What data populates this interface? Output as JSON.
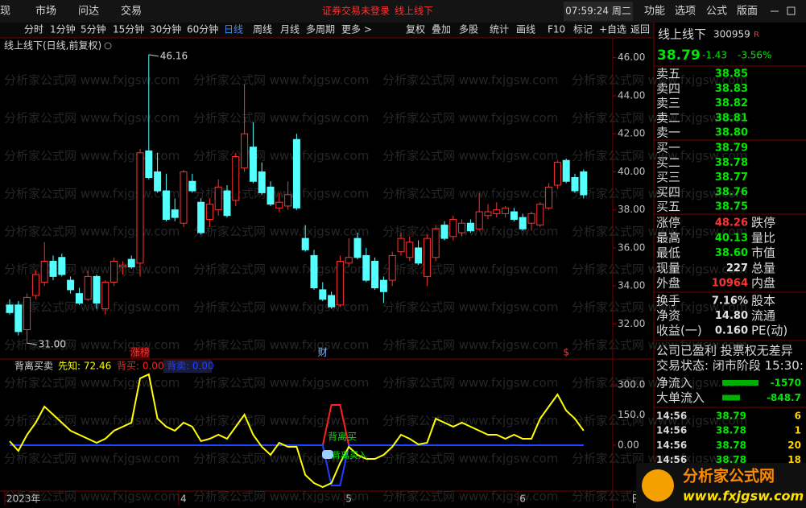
{
  "menu": {
    "left": [
      "现",
      "市场",
      "问达",
      "交易"
    ],
    "notice": "证券交易未登录",
    "stock": "线上线下",
    "clock": "07:59:24 周二",
    "right": [
      "功能",
      "选项",
      "公式",
      "版面"
    ]
  },
  "toolbar": {
    "periods": [
      "分时",
      "1分钟",
      "5分钟",
      "15分钟",
      "30分钟",
      "60分钟",
      "日线",
      "周线",
      "月线",
      "多周期",
      "更多 >"
    ],
    "tools": [
      "复权",
      "叠加",
      "多股",
      "统计",
      "画线",
      "F10",
      "标记",
      "+自选",
      "返回"
    ]
  },
  "kline": {
    "title": "线上线下(日线,前复权)",
    "ylim": [
      30.2,
      47.0
    ],
    "yticks": [
      {
        "value": 46,
        "label": "46.00"
      },
      {
        "value": 44,
        "label": "44.00"
      },
      {
        "value": 42,
        "label": "42.00"
      },
      {
        "value": 40,
        "label": "40.00"
      },
      {
        "value": 38,
        "label": "38.00"
      },
      {
        "value": 36,
        "label": "36.00"
      },
      {
        "value": 34,
        "label": "34.00"
      },
      {
        "value": 32,
        "label": "32.00"
      }
    ],
    "open": [
      33.0,
      33.0,
      31.7,
      33.5,
      34.2,
      35.3,
      35.5,
      34.3,
      33.6,
      33.3,
      34.5,
      32.8,
      34.2,
      35.0,
      35.4,
      35.2,
      41.1,
      40.0,
      39.0,
      38.0,
      37.3,
      39.5,
      38.4,
      37.5,
      38.0,
      39.0,
      38.5,
      40.2,
      41.3,
      40.0,
      39.2,
      38.1,
      38.2,
      41.7,
      36.5,
      35.6,
      33.8,
      33.5,
      33.0,
      35.2,
      36.5,
      35.6,
      35.3,
      34.3,
      34.3,
      35.8,
      35.5,
      36.0,
      34.5,
      35.5,
      37.2,
      36.6,
      36.8,
      37.3,
      37.0,
      37.7,
      37.8,
      37.8,
      37.9,
      37.6,
      37.3,
      37.2,
      38.1,
      39.3,
      40.6,
      39.7,
      40.0
    ],
    "high": [
      33.3,
      33.2,
      33.6,
      34.8,
      36.3,
      35.6,
      35.7,
      34.5,
      33.9,
      34.8,
      34.6,
      34.3,
      35.5,
      35.3,
      35.6,
      41.2,
      46.16,
      41.0,
      39.9,
      38.6,
      40.1,
      39.9,
      38.6,
      38.6,
      39.6,
      39.3,
      41.0,
      44.6,
      42.6,
      40.5,
      39.5,
      38.9,
      39.5,
      42.0,
      37.2,
      35.9,
      34.2,
      33.7,
      35.6,
      36.5,
      36.8,
      36.0,
      35.5,
      34.5,
      35.8,
      36.8,
      36.6,
      36.4,
      36.7,
      37.2,
      37.4,
      37.7,
      37.5,
      37.5,
      38.9,
      38.3,
      38.4,
      38.2,
      38.1,
      37.8,
      37.9,
      38.4,
      39.4,
      40.6,
      40.7,
      39.9,
      40.13
    ],
    "low": [
      32.5,
      31.4,
      31.0,
      33.3,
      34.0,
      34.3,
      34.5,
      33.6,
      33.0,
      33.2,
      32.8,
      32.5,
      34.0,
      34.6,
      34.9,
      34.5,
      39.6,
      38.9,
      37.4,
      37.4,
      37.1,
      38.9,
      36.7,
      37.1,
      37.7,
      37.6,
      38.2,
      40.0,
      39.4,
      38.8,
      38.2,
      37.9,
      38.0,
      38.0,
      35.8,
      33.8,
      33.2,
      32.8,
      32.9,
      35.0,
      35.4,
      34.2,
      33.8,
      33.1,
      34.0,
      35.6,
      35.3,
      35.1,
      34.0,
      35.3,
      36.4,
      36.4,
      36.6,
      36.8,
      36.9,
      37.5,
      37.6,
      37.6,
      37.4,
      36.9,
      36.9,
      37.1,
      38.0,
      39.1,
      39.4,
      38.9,
      38.6
    ],
    "close": [
      32.6,
      31.6,
      33.4,
      34.6,
      35.3,
      34.5,
      34.6,
      33.8,
      33.1,
      34.5,
      33.1,
      34.2,
      35.3,
      35.1,
      35.0,
      41.0,
      39.7,
      39.0,
      37.5,
      37.6,
      40.0,
      39.0,
      36.8,
      38.3,
      39.2,
      37.7,
      40.8,
      42.0,
      39.5,
      38.9,
      38.3,
      38.4,
      38.8,
      38.1,
      35.9,
      33.9,
      33.3,
      32.9,
      35.3,
      35.5,
      35.5,
      34.3,
      33.9,
      33.7,
      35.6,
      36.5,
      36.3,
      35.2,
      36.5,
      37.0,
      36.5,
      37.5,
      37.3,
      36.9,
      37.9,
      37.9,
      38.0,
      38.1,
      37.5,
      37.0,
      37.8,
      38.3,
      39.2,
      40.5,
      39.5,
      39.0,
      38.79
    ],
    "max_mark": 46.16,
    "min_mark": {
      "value": 31,
      "label": "31.00"
    },
    "events": [
      "涨榜",
      "财",
      "$"
    ],
    "dates": [
      "2023年",
      "4",
      "5",
      "6"
    ],
    "period": "日线"
  },
  "indicator": {
    "name": "背离买卖",
    "legend": [
      "先知: 72.46",
      "背买: 0.00",
      "背卖: 0.00"
    ],
    "ylim": [
      -220,
      412
    ],
    "yticks": [
      {
        "value": 300,
        "label": "300.0"
      },
      {
        "value": 150,
        "label": "150.0"
      },
      {
        "value": 0,
        "label": "0.00"
      }
    ],
    "series": [
      {
        "name": "先知",
        "color": "#ffff00",
        "values": [
          20,
          -28,
          52,
          112,
          192,
          152,
          112,
          72,
          52,
          32,
          12,
          32,
          72,
          92,
          112,
          332,
          352,
          132,
          92,
          72,
          112,
          92,
          20,
          32,
          52,
          32,
          92,
          152,
          52,
          -8,
          -48,
          12,
          -8,
          -8,
          -148,
          -188,
          -208,
          -188,
          -88,
          -8,
          -48,
          -68,
          -68,
          -48,
          -8,
          52,
          32,
          4,
          12,
          132,
          112,
          92,
          112,
          92,
          72,
          52,
          52,
          32,
          52,
          32,
          32,
          132,
          192,
          252,
          172,
          132,
          72.46
        ]
      },
      {
        "name": "背买",
        "color": "#ff2020",
        "values": [
          0,
          0,
          0,
          0,
          0,
          0,
          0,
          0,
          0,
          0,
          0,
          0,
          0,
          0,
          0,
          0,
          0,
          0,
          0,
          0,
          0,
          0,
          0,
          0,
          0,
          0,
          0,
          0,
          0,
          0,
          0,
          0,
          0,
          0,
          0,
          0,
          0,
          200,
          200,
          0,
          0,
          0,
          0,
          0,
          0,
          0,
          0,
          0,
          0,
          0,
          0,
          0,
          0,
          0,
          0,
          0,
          0,
          0,
          0,
          0,
          0,
          0,
          0,
          0,
          0,
          0,
          0
        ]
      },
      {
        "name": "背卖",
        "color": "#2040ff",
        "values": [
          0,
          0,
          0,
          0,
          0,
          0,
          0,
          0,
          0,
          0,
          0,
          0,
          0,
          0,
          0,
          0,
          0,
          0,
          0,
          0,
          0,
          0,
          0,
          0,
          0,
          0,
          0,
          0,
          0,
          0,
          0,
          0,
          0,
          0,
          0,
          0,
          0,
          -200,
          -200,
          0,
          0,
          0,
          0,
          0,
          0,
          0,
          0,
          0,
          0,
          0,
          0,
          0,
          0,
          0,
          0,
          0,
          0,
          0,
          0,
          0,
          0,
          0,
          0,
          0,
          0,
          0,
          0
        ]
      }
    ],
    "signals": [
      "背离买",
      "背离买入"
    ]
  },
  "quote": {
    "name": "线上线下",
    "code": "300959",
    "flag": "R",
    "price": "38.79",
    "change": "-1.43",
    "pct": "-3.56%",
    "asks": [
      [
        "卖五",
        "38.85"
      ],
      [
        "卖四",
        "38.83"
      ],
      [
        "卖三",
        "38.82"
      ],
      [
        "卖二",
        "38.81"
      ],
      [
        "卖一",
        "38.80"
      ]
    ],
    "bids": [
      [
        "买一",
        "38.79"
      ],
      [
        "买二",
        "38.78"
      ],
      [
        "买三",
        "38.77"
      ],
      [
        "买四",
        "38.76"
      ],
      [
        "买五",
        "38.75"
      ]
    ],
    "stats": [
      [
        "涨停",
        "48.26",
        "跌停"
      ],
      [
        "最高",
        "40.13",
        "量比"
      ],
      [
        "最低",
        "38.60",
        "市值"
      ],
      [
        "现量",
        "227",
        "总量"
      ],
      [
        "外盘",
        "10964",
        "内盘"
      ]
    ],
    "stats2": [
      [
        "换手",
        "7.16%",
        "股本"
      ],
      [
        "净资",
        "14.80",
        "流通"
      ],
      [
        "收益(一)",
        "0.160",
        "PE(动)"
      ]
    ],
    "info": [
      "公司已盈利 投票权无差异",
      "交易状态: 闭市阶段 15:30:"
    ],
    "flows": [
      [
        "净流入",
        "-1570"
      ],
      [
        "大单流入",
        "-848.7"
      ]
    ],
    "ticks": [
      [
        "14:56",
        "38.79",
        "6"
      ],
      [
        "14:56",
        "38.78",
        "1"
      ],
      [
        "14:56",
        "38.78",
        "20"
      ],
      [
        "14:56",
        "38.78",
        "18"
      ]
    ]
  },
  "watermark": "分析家公式网 www.fxjgsw.com",
  "logo": {
    "name": "分析家公式网",
    "url": "www.fxjgsw.com"
  }
}
